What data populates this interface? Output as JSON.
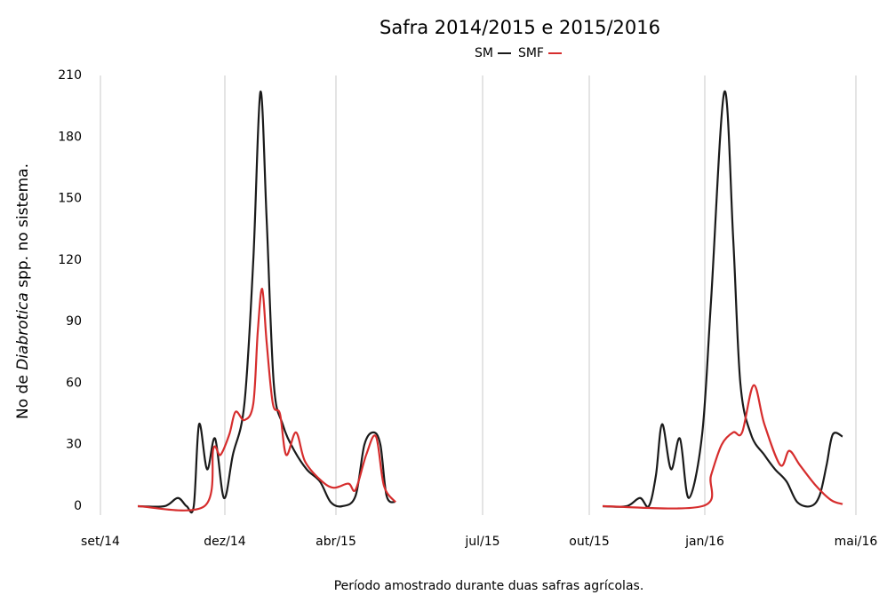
{
  "chart_data": {
    "type": "line",
    "title": "Safra 2014/2015 e 2015/2016",
    "x_label": "Período amostrado durante duas safras agrícolas.",
    "y_label": [
      "No de ",
      "Diabrotica",
      " spp. no sistema."
    ],
    "xlim": [
      0,
      90
    ],
    "ylim": [
      0,
      210
    ],
    "xticks": [
      {
        "value": 1.5,
        "label": "set/14"
      },
      {
        "value": 15.5,
        "label": "dez/14"
      },
      {
        "value": 28,
        "label": "abr/15"
      },
      {
        "value": 44.5,
        "label": "jul/15"
      },
      {
        "value": 56.5,
        "label": "out/15"
      },
      {
        "value": 69.5,
        "label": "jan/16"
      },
      {
        "value": 86.5,
        "label": "mai/16"
      }
    ],
    "yticks": [
      0,
      30,
      60,
      90,
      120,
      150,
      180,
      210
    ],
    "grid": "x",
    "series": [
      {
        "name": "SM",
        "color": "#1a1a1a",
        "x": [
          5.7,
          8.7,
          10.2,
          11.2,
          12,
          12.6,
          13.5,
          14.4,
          15.4,
          16.4,
          17.7,
          18.7,
          19.5,
          20.2,
          21,
          22,
          23.2,
          24.7,
          26.2,
          27.4,
          28.7,
          30.2,
          31.2,
          32.2,
          33,
          33.7,
          34.7,
          46,
          58,
          60.7,
          62.2,
          63.2,
          64,
          64.7,
          65.7,
          66.7,
          67.7,
          69.2,
          70.2,
          71.7,
          72.7,
          73.5,
          74.7,
          76.2,
          77.4,
          78.7,
          79.9,
          81.4,
          82.4,
          83.2,
          83.9,
          85
        ],
        "values": [
          0,
          0,
          4,
          0,
          0,
          40,
          18,
          33,
          4,
          25,
          50,
          120,
          202,
          140,
          60,
          40,
          28,
          18,
          12,
          2,
          0,
          5,
          30,
          36,
          30,
          5,
          2,
          null,
          0,
          0,
          4,
          0,
          15,
          40,
          18,
          33,
          4,
          35,
          100,
          202,
          130,
          60,
          35,
          25,
          18,
          12,
          2,
          0,
          5,
          20,
          35,
          34
        ]
      },
      {
        "name": "SMF",
        "color": "#d62d2d",
        "x": [
          5.7,
          13.2,
          14.2,
          15,
          16,
          16.7,
          17.7,
          18.7,
          19.2,
          19.7,
          20.2,
          20.9,
          21.7,
          22.4,
          23.5,
          24.5,
          26.2,
          27.7,
          29.4,
          30.2,
          31.4,
          32.5,
          33.4,
          34.7,
          46,
          58,
          69.2,
          70.2,
          71.4,
          72.7,
          73.7,
          75,
          76.2,
          78,
          79,
          80.2,
          82,
          83.7,
          85
        ],
        "values": [
          0,
          0,
          28,
          25,
          35,
          46,
          42,
          50,
          85,
          106,
          80,
          50,
          45,
          25,
          36,
          22,
          13,
          9,
          11,
          8,
          25,
          34,
          10,
          2,
          null,
          0,
          0,
          15,
          30,
          36,
          36,
          59,
          40,
          20,
          27,
          20,
          10,
          3,
          1
        ]
      }
    ]
  }
}
